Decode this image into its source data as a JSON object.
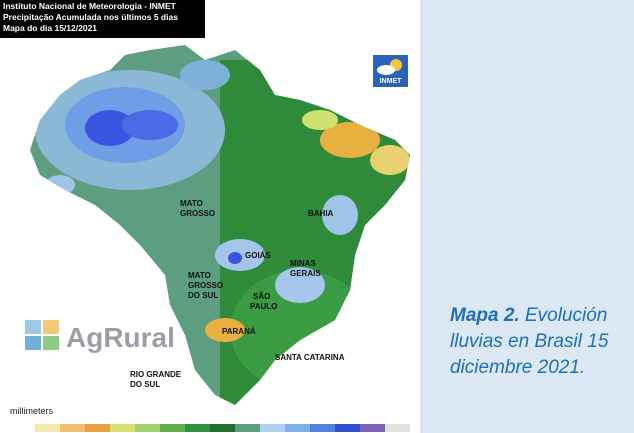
{
  "header": {
    "lines": [
      "Instituto Nacional de Meteorologia - INMET",
      "Precipitação Acumulada nos últimos 5 dias",
      "Mapa do dia 15/12/2021"
    ]
  },
  "logos": {
    "inmet": "INMET",
    "agrural": "AgRural"
  },
  "map_labels": [
    {
      "lines": [
        "MATO",
        "GROSSO"
      ]
    },
    {
      "lines": [
        "BAHIA"
      ]
    },
    {
      "lines": [
        "GOIÁS"
      ]
    },
    {
      "lines": [
        "MINAS",
        "GERAIS"
      ]
    },
    {
      "lines": [
        "MATO",
        "GROSSO",
        "DO SUL"
      ]
    },
    {
      "lines": [
        "SÃO",
        "PAULO"
      ]
    },
    {
      "lines": [
        "PARANÁ"
      ]
    },
    {
      "lines": [
        "SANTA CATARINA"
      ]
    },
    {
      "lines": [
        "RIO GRANDE",
        "DO SUL"
      ]
    }
  ],
  "legend": {
    "title": "millimeters"
  },
  "caption": {
    "label": "Mapa 2.",
    "text": "Evolución lluvias en Brasil 15 diciembre 2021."
  }
}
